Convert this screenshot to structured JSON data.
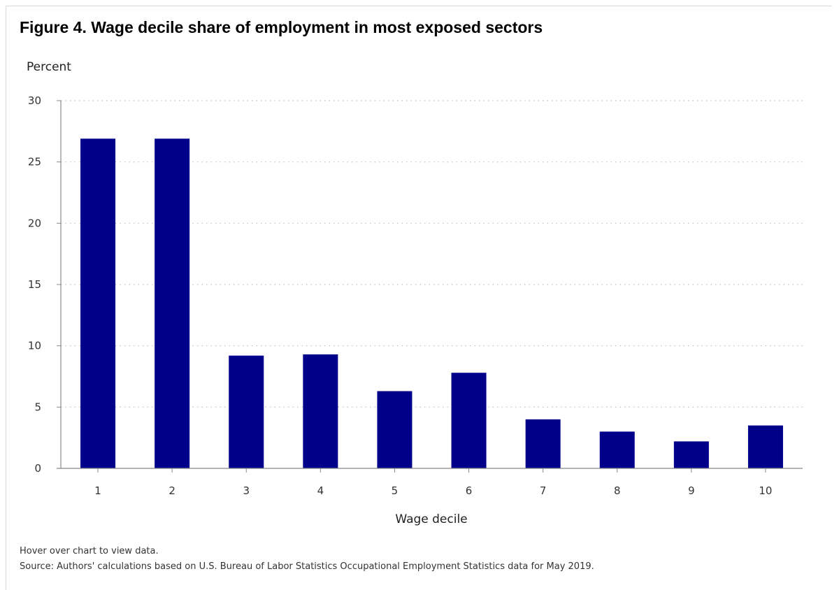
{
  "title": "Figure 4. Wage decile share of employment in most exposed sectors",
  "notes": {
    "hover": "Hover over chart to view data.",
    "source": "Source: Authors' calculations based on U.S. Bureau of Labor Statistics Occupational Employment Statistics data for May 2019."
  },
  "colors": {
    "bar": "#00008b",
    "grid": "#bfbfbf",
    "axis": "#888888"
  },
  "chart_data": {
    "type": "bar",
    "title": "Figure 4. Wage decile share of employment in most exposed sectors",
    "ylabel": "Percent",
    "xlabel": "Wage decile",
    "categories": [
      "1",
      "2",
      "3",
      "4",
      "5",
      "6",
      "7",
      "8",
      "9",
      "10"
    ],
    "values": [
      26.9,
      26.9,
      9.2,
      9.3,
      6.3,
      7.8,
      4.0,
      3.0,
      2.2,
      3.5
    ],
    "ylim": [
      0,
      30
    ],
    "yticks": [
      0,
      5,
      10,
      15,
      20,
      25,
      30
    ],
    "grid": "horizontal dotted",
    "legend": "none"
  }
}
